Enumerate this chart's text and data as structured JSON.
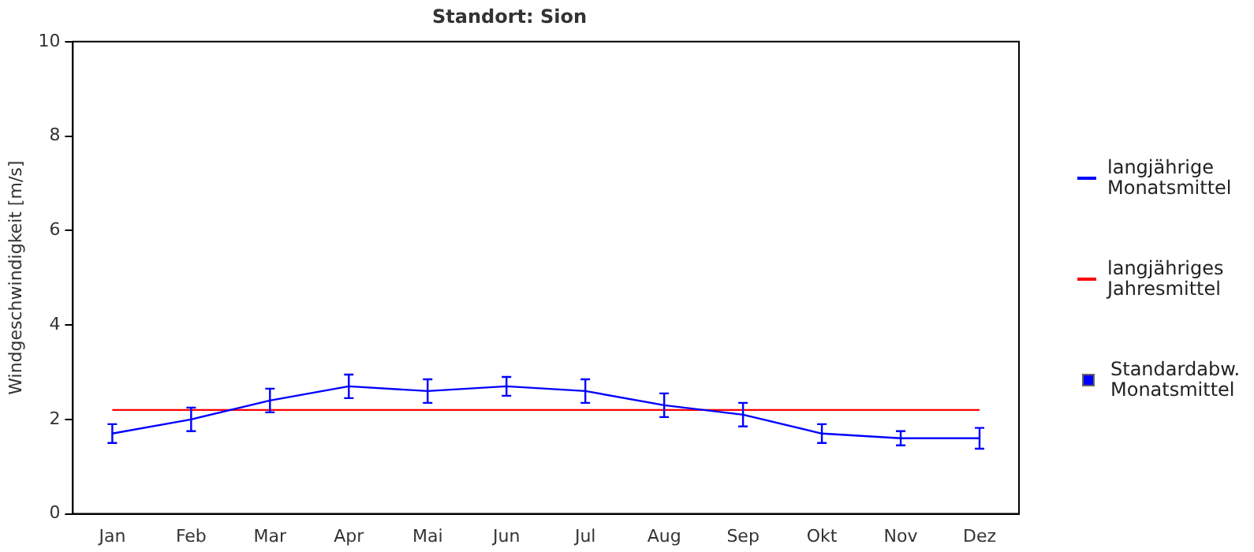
{
  "chart_data": {
    "type": "line",
    "title": "Standort: Sion",
    "ylabel": "Windgeschwindigkeit [m/s]",
    "categories": [
      "Jan",
      "Feb",
      "Mar",
      "Apr",
      "Mai",
      "Jun",
      "Jul",
      "Aug",
      "Sep",
      "Okt",
      "Nov",
      "Dez"
    ],
    "series": [
      {
        "name": "langjährige Monatsmittel",
        "color": "#0000ff",
        "values": [
          1.7,
          2.0,
          2.4,
          2.7,
          2.6,
          2.7,
          2.6,
          2.3,
          2.1,
          1.7,
          1.6,
          1.6
        ],
        "errors": [
          0.2,
          0.25,
          0.25,
          0.25,
          0.25,
          0.2,
          0.25,
          0.25,
          0.25,
          0.2,
          0.15,
          0.22
        ]
      },
      {
        "name": "langjähriges Jahresmittel",
        "color": "#ff0000",
        "values": [
          2.2,
          2.2,
          2.2,
          2.2,
          2.2,
          2.2,
          2.2,
          2.2,
          2.2,
          2.2,
          2.2,
          2.2
        ]
      }
    ],
    "annotations": [
      "Standardabw. Monatsmittel"
    ],
    "ylim": [
      0,
      10
    ],
    "yticks": [
      0,
      2,
      4,
      6,
      8,
      10
    ],
    "grid": false,
    "legend": "right",
    "marker": "none",
    "line_style": "solid"
  }
}
